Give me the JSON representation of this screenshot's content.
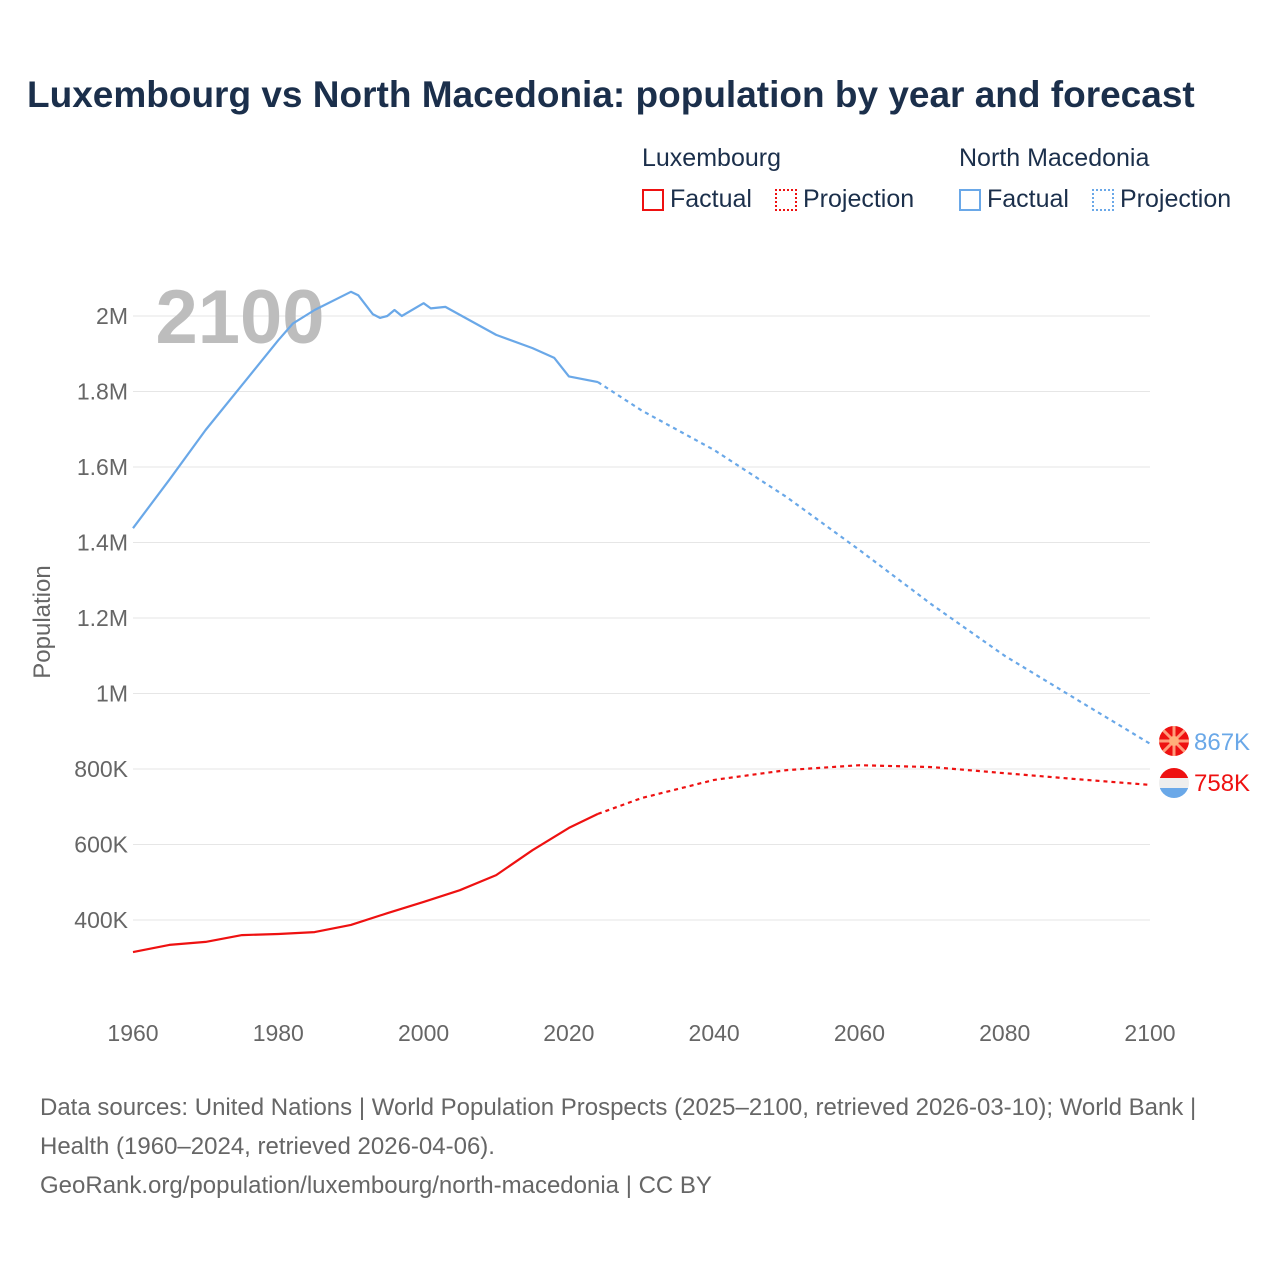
{
  "title": "Luxembourg vs North Macedonia: population by year and forecast",
  "legend": {
    "groups": [
      {
        "name": "Luxembourg",
        "factual": "Factual",
        "projection": "Projection",
        "color": "#ee1111"
      },
      {
        "name": "North Macedonia",
        "factual": "Factual",
        "projection": "Projection",
        "color": "#6aa8e8"
      }
    ]
  },
  "year_overlay": "2100",
  "footer": {
    "sources": "Data sources: United Nations | World Population Prospects (2025–2100, retrieved 2026-03-10); World Bank | Health (1960–2024, retrieved 2026-04-06).",
    "url": "GeoRank.org/population/luxembourg/north-macedonia | CC BY"
  },
  "chart_data": {
    "type": "line",
    "title": "Luxembourg vs North Macedonia: population by year and forecast",
    "xlabel": "",
    "ylabel": "Population",
    "xlim": [
      1960,
      2100
    ],
    "ylim": [
      230000,
      2100000
    ],
    "xticks": [
      1960,
      1980,
      2000,
      2020,
      2040,
      2060,
      2080,
      2100
    ],
    "xtick_labels": [
      "1960",
      "1980",
      "2000",
      "2020",
      "2040",
      "2060",
      "2080",
      "2100"
    ],
    "yticks": [
      400000,
      600000,
      800000,
      1000000,
      1200000,
      1400000,
      1600000,
      1800000,
      2000000
    ],
    "ytick_labels": [
      "400K",
      "600K",
      "800K",
      "1M",
      "1.2M",
      "1.4M",
      "1.6M",
      "1.8M",
      "2M"
    ],
    "grid": true,
    "legend_position": "top-right",
    "series": [
      {
        "name": "North Macedonia",
        "color": "#6aa8e8",
        "end_label": "867K",
        "factual": {
          "x": [
            1960,
            1965,
            1970,
            1975,
            1980,
            1982,
            1985,
            1990,
            1991,
            1993,
            1994,
            1995,
            1996,
            1997,
            2000,
            2001,
            2003,
            2005,
            2010,
            2015,
            2018,
            2020,
            2024
          ],
          "y": [
            1438000,
            1566000,
            1698000,
            1817000,
            1936000,
            1980000,
            2016000,
            2064000,
            2055000,
            2005000,
            1995000,
            2000000,
            2016000,
            2000000,
            2034000,
            2020000,
            2024000,
            2003000,
            1950000,
            1915000,
            1889000,
            1840000,
            1825000
          ]
        },
        "projection": {
          "x": [
            2024,
            2030,
            2040,
            2050,
            2060,
            2070,
            2080,
            2090,
            2100
          ],
          "y": [
            1825000,
            1750000,
            1645000,
            1520000,
            1380000,
            1235000,
            1100000,
            983000,
            867000
          ]
        }
      },
      {
        "name": "Luxembourg",
        "color": "#ee1111",
        "end_label": "758K",
        "factual": {
          "x": [
            1960,
            1965,
            1970,
            1975,
            1980,
            1985,
            1990,
            1995,
            2000,
            2005,
            2010,
            2015,
            2020,
            2024
          ],
          "y": [
            315000,
            334000,
            342000,
            360000,
            363000,
            368000,
            387000,
            418000,
            448000,
            479000,
            519000,
            585000,
            644000,
            681000
          ]
        },
        "projection": {
          "x": [
            2024,
            2030,
            2040,
            2050,
            2060,
            2070,
            2080,
            2090,
            2100
          ],
          "y": [
            681000,
            723000,
            771000,
            797000,
            810000,
            805000,
            789000,
            773000,
            758000
          ]
        }
      }
    ]
  }
}
